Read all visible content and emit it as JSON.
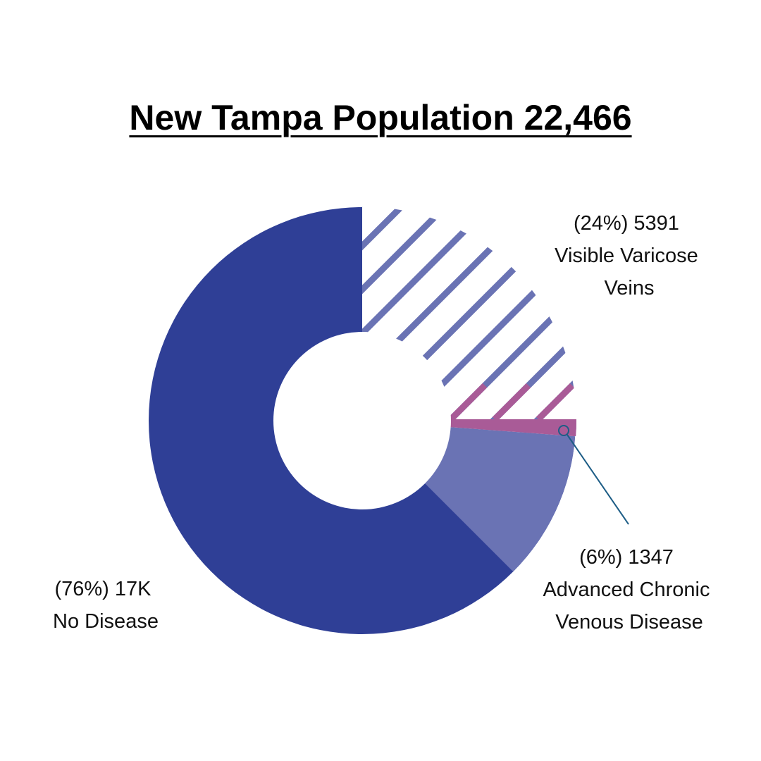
{
  "chart_data": {
    "type": "pie",
    "title": "New Tampa Population 22,466",
    "total": 22466,
    "slices": [
      {
        "name": "Visible Varicose Veins",
        "percent": 24,
        "value": 5391,
        "pattern": "hatched",
        "lines": [
          "(24%) 5391",
          "Visible Varicose",
          "Veins"
        ]
      },
      {
        "name": "Advanced Chronic Venous Disease",
        "percent": 6,
        "value": 1347,
        "pattern": "solid",
        "lines": [
          "(6%) 1347",
          "Advanced Chronic",
          "Venous Disease"
        ]
      },
      {
        "name": "No Disease",
        "percent": 76,
        "value": "17K",
        "pattern": "solid",
        "lines": [
          "(76%) 17K",
          "No Disease"
        ]
      }
    ]
  },
  "colors": {
    "no_disease": "#2f3f96",
    "advanced": "#6a73b4",
    "hatch": "#6a73b4",
    "highlight": "#a95b97",
    "leader": "#1d5d86"
  }
}
